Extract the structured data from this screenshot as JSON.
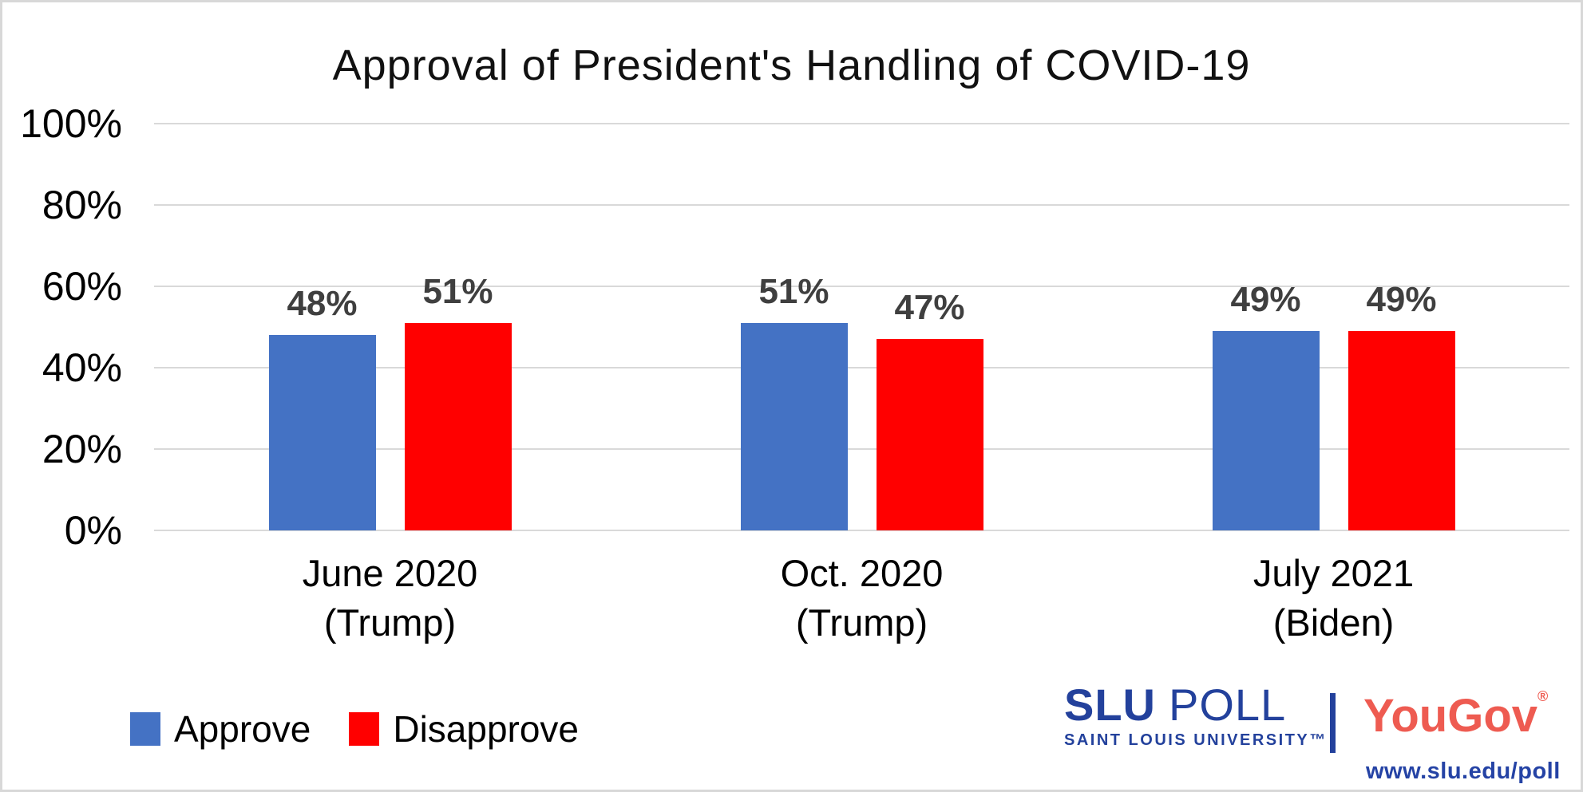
{
  "chart_data": {
    "type": "bar",
    "title": "Approval of President's Handling of COVID-19",
    "categories": [
      "June 2020 (Trump)",
      "Oct. 2020 (Trump)",
      "July 2021 (Biden)"
    ],
    "category_lines": [
      [
        "June 2020",
        "(Trump)"
      ],
      [
        "Oct. 2020",
        "(Trump)"
      ],
      [
        "July 2021",
        "(Biden)"
      ]
    ],
    "series": [
      {
        "name": "Approve",
        "color": "#4472C4",
        "values": [
          48,
          51,
          49
        ]
      },
      {
        "name": "Disapprove",
        "color": "#FF0000",
        "values": [
          51,
          47,
          49
        ]
      }
    ],
    "value_labels": [
      [
        "48%",
        "51%"
      ],
      [
        "51%",
        "47%"
      ],
      [
        "49%",
        "49%"
      ]
    ],
    "ylim": [
      0,
      100
    ],
    "ytick_step": 20,
    "ytick_labels": [
      "0%",
      "20%",
      "40%",
      "60%",
      "80%",
      "100%"
    ],
    "grid": true,
    "legend_position": "bottom-left"
  },
  "footer": {
    "slu_logo": {
      "word1": "SLU",
      "word2": "POLL",
      "subline": "SAINT LOUIS UNIVERSITY™",
      "color": "#23419C"
    },
    "yougov": {
      "text": "YouGov",
      "reg_mark": "®",
      "color": "#EE5B51"
    },
    "url": "www.slu.edu/poll"
  },
  "colors": {
    "approve_bar": "#4472C4",
    "disapprove_bar": "#FF0000",
    "value_label": "#3F3F3F",
    "gridline": "#D9D9D9",
    "page_border": "#D8D8D8"
  }
}
